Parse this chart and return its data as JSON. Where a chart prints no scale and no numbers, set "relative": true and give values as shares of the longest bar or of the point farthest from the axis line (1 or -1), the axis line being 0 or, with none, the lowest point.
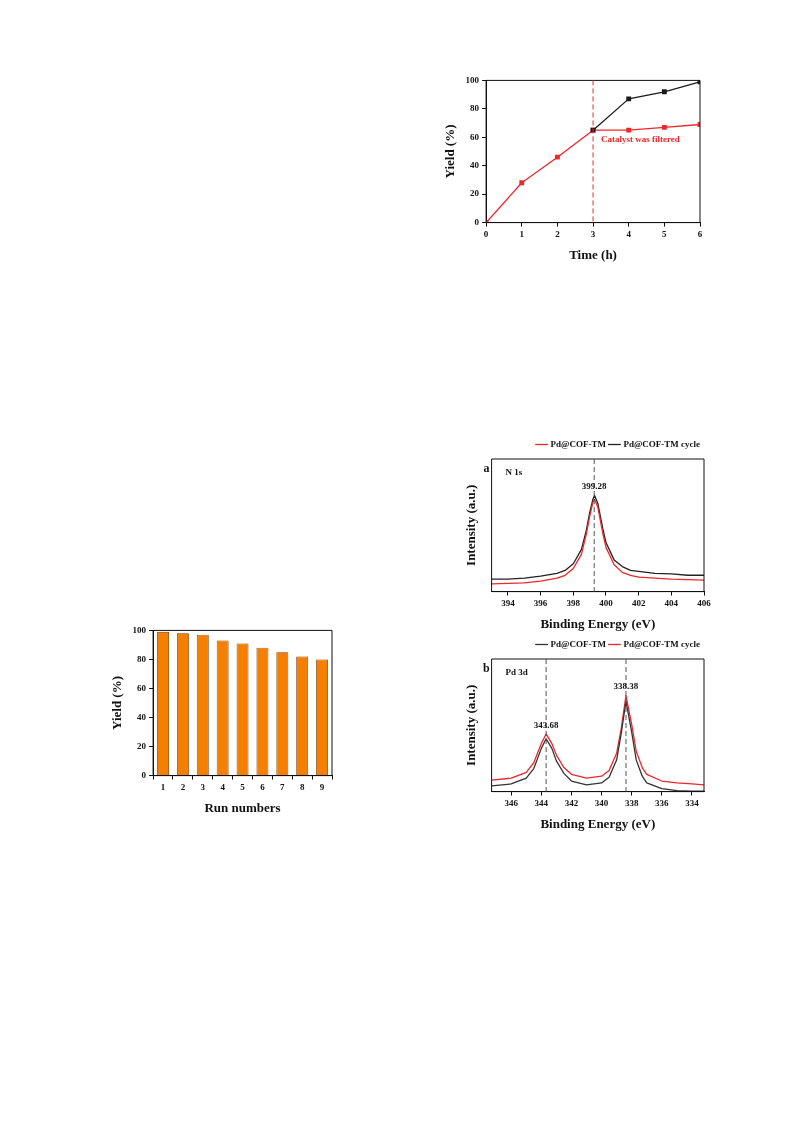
{
  "chart_data": [
    {
      "type": "line",
      "xlabel": "Time (h)",
      "ylabel": "Yield (%)",
      "xlim": [
        0,
        6
      ],
      "xticks": [
        0,
        1,
        2,
        3,
        4,
        5,
        6
      ],
      "ylim": [
        0,
        100
      ],
      "yticks": [
        0,
        20,
        40,
        60,
        80,
        100
      ],
      "marker": "square",
      "grid": false,
      "legend": false,
      "series": [
        {
          "color": "#1a1a1a",
          "x": [
            3,
            4,
            5,
            6
          ],
          "values": [
            65,
            87,
            92,
            99
          ]
        },
        {
          "color": "#f0262a",
          "x": [
            0,
            1,
            2,
            3,
            4,
            5,
            6
          ],
          "values": [
            0,
            28,
            46,
            65,
            65,
            67,
            69
          ]
        }
      ],
      "ref_lines": [
        {
          "axis": "x",
          "value": 3,
          "label": "Catalyst was filtered",
          "color": "#f0262a",
          "line_style": "dashed"
        }
      ]
    },
    {
      "type": "bar",
      "xlabel": "Run numbers",
      "ylabel": "Yield (%)",
      "categories": [
        "1",
        "2",
        "3",
        "4",
        "5",
        "6",
        "7",
        "8",
        "9"
      ],
      "values": [
        99,
        98,
        97,
        93,
        91,
        88,
        85,
        82,
        80
      ],
      "color": "#f57f00",
      "ylim": [
        0,
        100
      ],
      "yticks": [
        0,
        20,
        40,
        60,
        80,
        100
      ],
      "grid": false,
      "legend": false
    },
    {
      "type": "line",
      "relative": true,
      "xlabel": "Binding Energy (eV)",
      "ylabel": "Intensity (a.u.)",
      "xlim": [
        393,
        406
      ],
      "xticks": [
        394,
        396,
        398,
        400,
        402,
        404,
        406
      ],
      "marker": "none",
      "grid": false,
      "legend": "top right",
      "x": [
        393,
        394,
        395,
        396,
        397,
        397.5,
        398,
        398.5,
        398.8,
        399,
        399.2,
        399.3,
        399.5,
        399.8,
        400,
        400.5,
        401,
        401.5,
        402,
        403,
        404,
        405,
        406
      ],
      "series": [
        {
          "name": "Pd@COF-TM",
          "color": "#f0262a",
          "values": [
            0.08,
            0.085,
            0.09,
            0.11,
            0.14,
            0.17,
            0.24,
            0.39,
            0.6,
            0.78,
            0.93,
            0.96,
            0.88,
            0.61,
            0.46,
            0.28,
            0.2,
            0.17,
            0.15,
            0.14,
            0.13,
            0.125,
            0.12
          ]
        },
        {
          "name": "Pd@COF-TM cycle",
          "color": "#222222",
          "values": [
            0.13,
            0.13,
            0.14,
            0.16,
            0.19,
            0.22,
            0.29,
            0.44,
            0.64,
            0.82,
            0.96,
            1,
            0.92,
            0.66,
            0.51,
            0.33,
            0.26,
            0.22,
            0.21,
            0.19,
            0.185,
            0.17,
            0.17
          ]
        }
      ],
      "ref_lines": [
        {
          "axis": "x",
          "value": 399.28,
          "color": "#555555",
          "line_style": "dashed"
        }
      ],
      "annotations": [
        "a",
        "N 1s",
        {
          "text": "399.28",
          "x": 399.28,
          "y": 1
        }
      ]
    },
    {
      "type": "line",
      "relative": true,
      "xlabel": "Binding Energy (eV)",
      "ylabel": "Intensity (a.u.)",
      "xlim": [
        347.3,
        333.2
      ],
      "xticks": [
        346,
        344,
        342,
        340,
        338,
        336,
        334
      ],
      "marker": "none",
      "grid": false,
      "legend": "top right",
      "x": [
        347.3,
        346,
        345,
        344.5,
        344,
        343.68,
        343.3,
        343,
        342.5,
        342,
        341,
        340,
        339.5,
        339,
        338.7,
        338.38,
        338,
        337.7,
        337.3,
        337,
        336,
        335,
        334,
        333.2
      ],
      "series": [
        {
          "name": "Pd@COF-TM",
          "color": "#333333",
          "values": [
            0.06,
            0.08,
            0.14,
            0.24,
            0.45,
            0.55,
            0.45,
            0.32,
            0.19,
            0.11,
            0.07,
            0.09,
            0.15,
            0.33,
            0.6,
            0.94,
            0.62,
            0.33,
            0.16,
            0.09,
            0.03,
            0.01,
            0.005,
            0.005
          ]
        },
        {
          "name": "Pd@COF-TM cycle",
          "color": "#f0262a",
          "values": [
            0.12,
            0.14,
            0.2,
            0.3,
            0.5,
            0.6,
            0.5,
            0.38,
            0.25,
            0.18,
            0.14,
            0.16,
            0.22,
            0.4,
            0.65,
            1,
            0.7,
            0.42,
            0.25,
            0.18,
            0.11,
            0.09,
            0.08,
            0.07
          ]
        }
      ],
      "ref_lines": [
        {
          "axis": "x",
          "value": 343.68,
          "color": "#555555",
          "line_style": "dashed"
        },
        {
          "axis": "x",
          "value": 338.38,
          "color": "#555555",
          "line_style": "dashed"
        }
      ],
      "annotations": [
        "b",
        "Pd 3d",
        {
          "text": "343.68",
          "x": 343.68,
          "y": 0.6
        },
        {
          "text": "338.38",
          "x": 338.38,
          "y": 1
        }
      ]
    }
  ]
}
